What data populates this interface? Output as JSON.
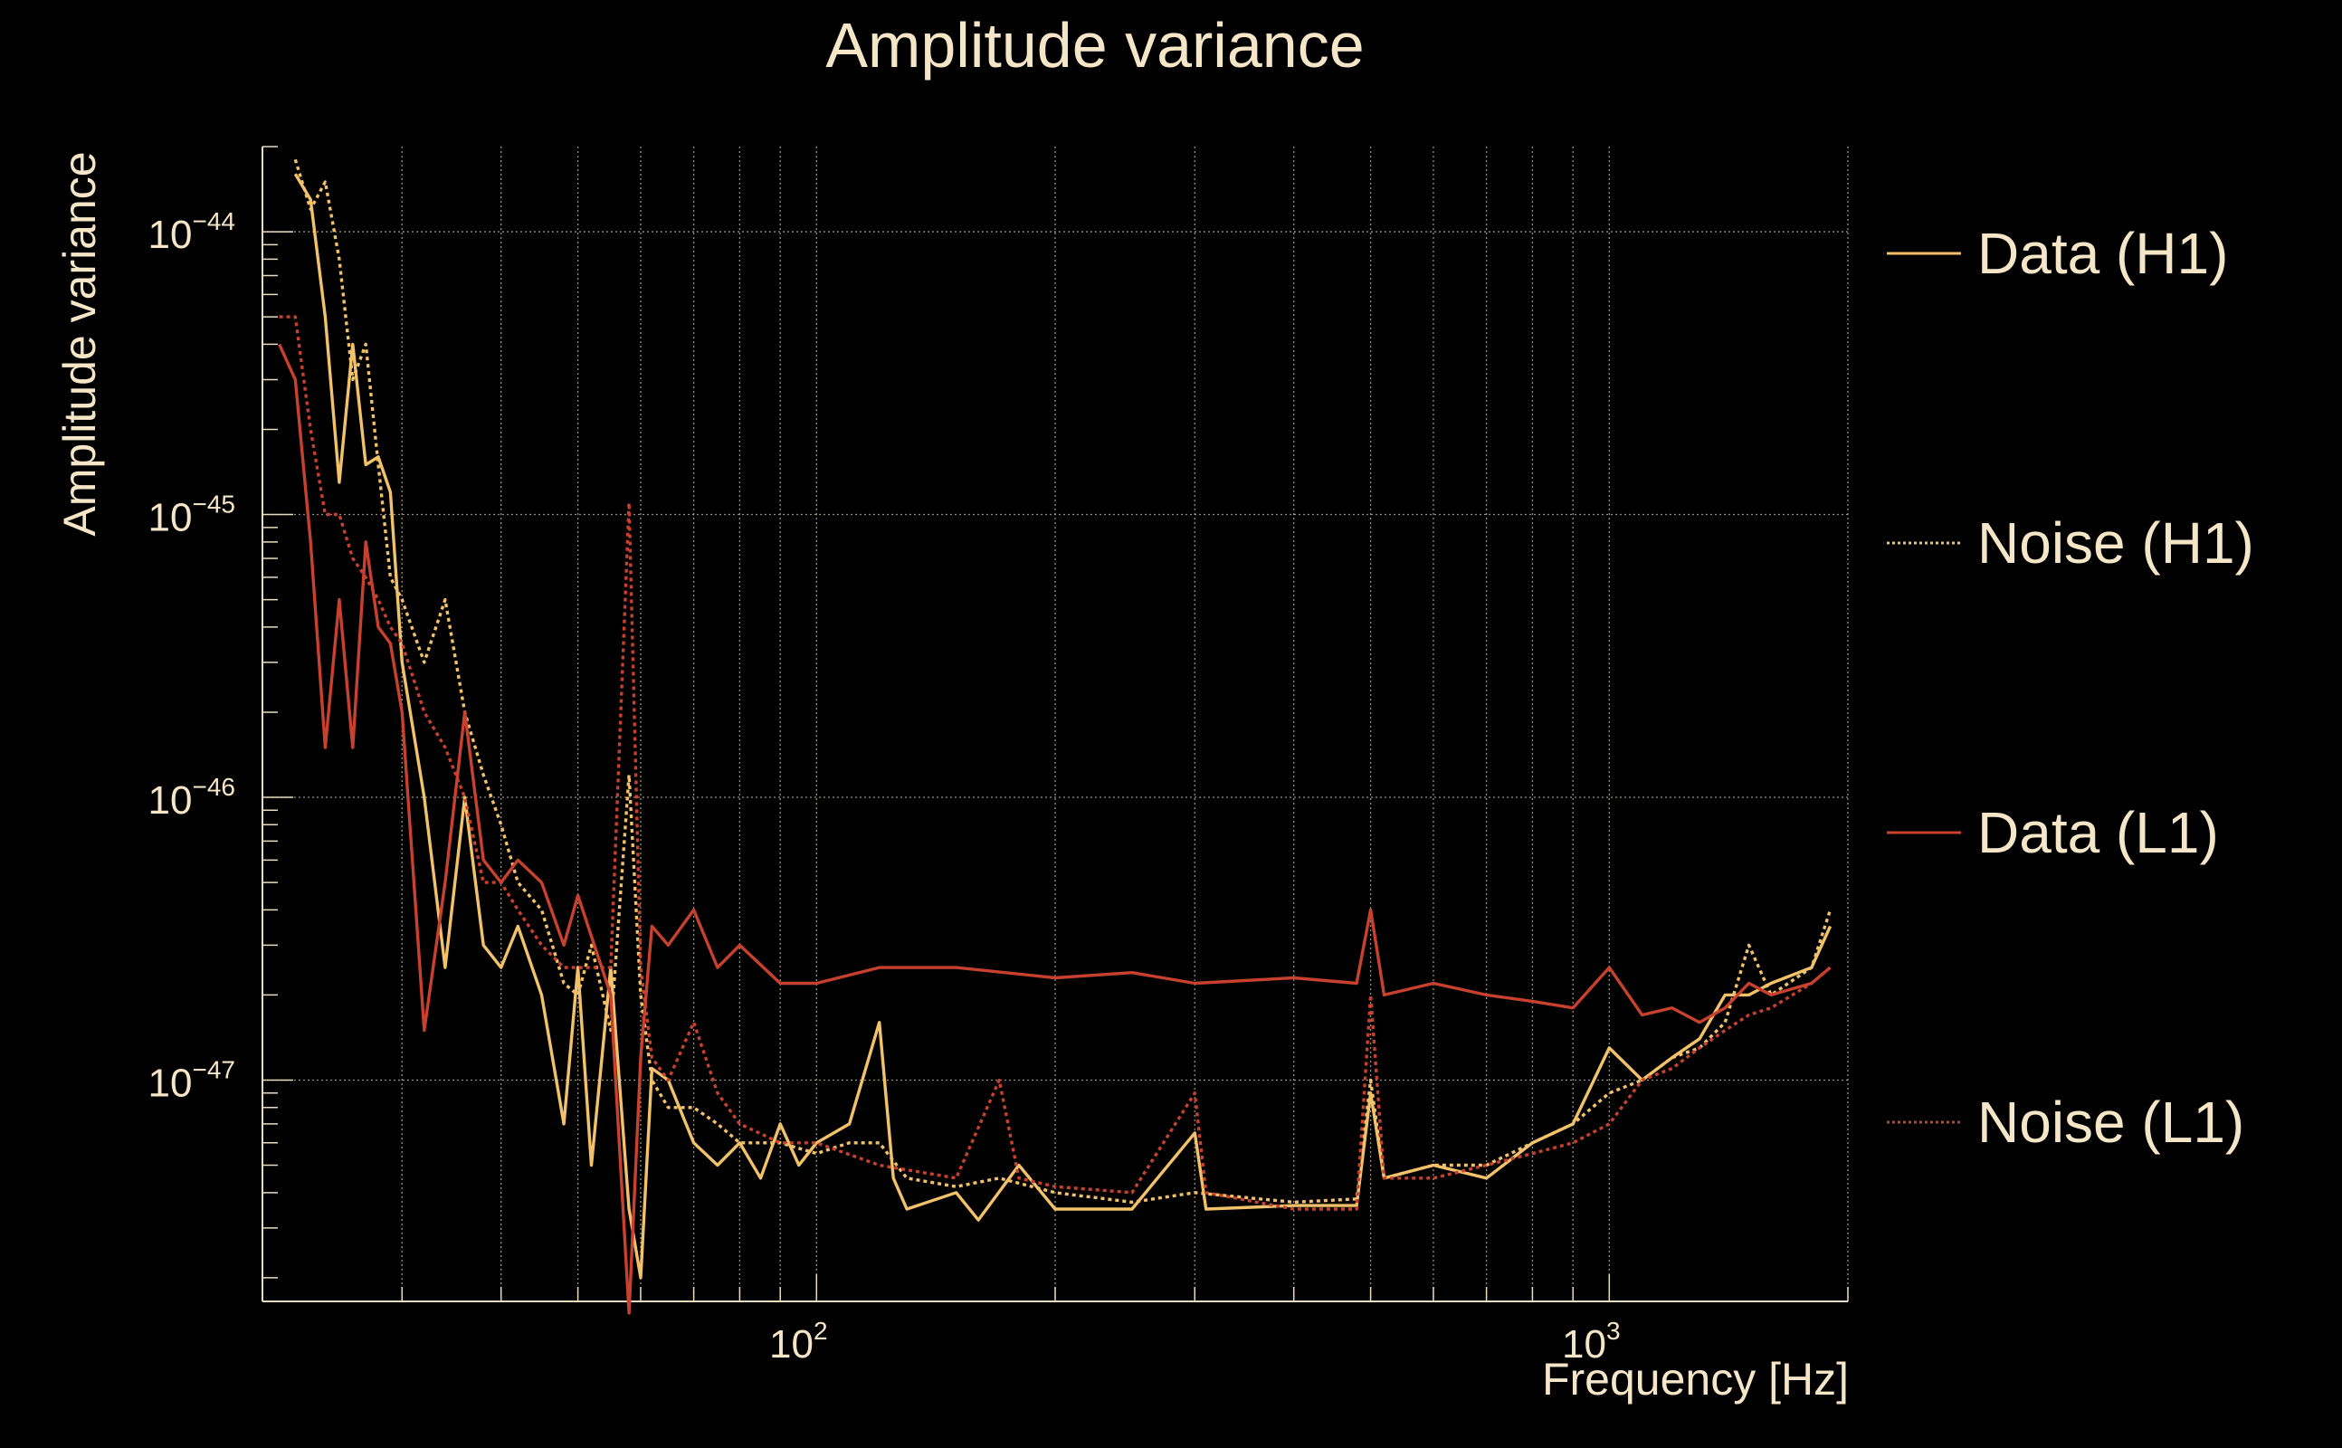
{
  "chart_data": {
    "type": "line",
    "title": "Amplitude variance",
    "xlabel": "Frequency [Hz]",
    "ylabel": "Amplitude variance",
    "xscale": "log",
    "yscale": "log",
    "xlim": [
      20,
      2000
    ],
    "ylim": [
      1.65e-48,
      2e-44
    ],
    "grid": true,
    "legend_position": "right",
    "x_tick_labels": [
      {
        "base": "10",
        "exp": "2",
        "value": 100
      },
      {
        "base": "10",
        "exp": "3",
        "value": 1000
      }
    ],
    "y_tick_labels": [
      {
        "base": "10",
        "exp": "−44",
        "value": 1e-44
      },
      {
        "base": "10",
        "exp": "−45",
        "value": 1e-45
      },
      {
        "base": "10",
        "exp": "−46",
        "value": 1e-46
      },
      {
        "base": "10",
        "exp": "−47",
        "value": 1e-47
      }
    ],
    "series": [
      {
        "name": "Data (H1)",
        "color": "#f2c26b",
        "style": "solid",
        "points": [
          [
            22,
            1.6e-44
          ],
          [
            23,
            1.3e-44
          ],
          [
            24,
            5e-45
          ],
          [
            25,
            1.3e-45
          ],
          [
            26,
            4e-45
          ],
          [
            27,
            1.5e-45
          ],
          [
            28,
            1.6e-45
          ],
          [
            29,
            1.2e-45
          ],
          [
            30,
            3e-46
          ],
          [
            32,
            1e-46
          ],
          [
            34,
            2.5e-47
          ],
          [
            36,
            1e-46
          ],
          [
            38,
            3e-47
          ],
          [
            40,
            2.5e-47
          ],
          [
            42,
            3.5e-47
          ],
          [
            45,
            2e-47
          ],
          [
            48,
            7e-48
          ],
          [
            50,
            2.5e-47
          ],
          [
            52,
            5e-48
          ],
          [
            55,
            2.5e-47
          ],
          [
            58,
            3.5e-48
          ],
          [
            60,
            2e-48
          ],
          [
            62,
            1.1e-47
          ],
          [
            65,
            1e-47
          ],
          [
            70,
            6e-48
          ],
          [
            75,
            5e-48
          ],
          [
            80,
            6e-48
          ],
          [
            85,
            4.5e-48
          ],
          [
            90,
            7e-48
          ],
          [
            95,
            5e-48
          ],
          [
            100,
            6e-48
          ],
          [
            110,
            7e-48
          ],
          [
            120,
            1.6e-47
          ],
          [
            125,
            4.5e-48
          ],
          [
            130,
            3.5e-48
          ],
          [
            150,
            4e-48
          ],
          [
            160,
            3.2e-48
          ],
          [
            180,
            5e-48
          ],
          [
            200,
            3.5e-48
          ],
          [
            250,
            3.5e-48
          ],
          [
            300,
            6.5e-48
          ],
          [
            310,
            3.5e-48
          ],
          [
            400,
            3.6e-48
          ],
          [
            480,
            3.6e-48
          ],
          [
            500,
            9e-48
          ],
          [
            520,
            4.5e-48
          ],
          [
            600,
            5e-48
          ],
          [
            700,
            4.5e-48
          ],
          [
            800,
            6e-48
          ],
          [
            900,
            7e-48
          ],
          [
            1000,
            1.3e-47
          ],
          [
            1100,
            1e-47
          ],
          [
            1200,
            1.2e-47
          ],
          [
            1300,
            1.4e-47
          ],
          [
            1400,
            2e-47
          ],
          [
            1500,
            2e-47
          ],
          [
            1600,
            2.2e-47
          ],
          [
            1800,
            2.5e-47
          ],
          [
            1900,
            3.5e-47
          ]
        ]
      },
      {
        "name": "Noise (H1)",
        "color": "#f2c26b",
        "style": "dotted",
        "points": [
          [
            22,
            1.8e-44
          ],
          [
            23,
            1.2e-44
          ],
          [
            24,
            1.5e-44
          ],
          [
            25,
            8e-45
          ],
          [
            26,
            3e-45
          ],
          [
            27,
            4e-45
          ],
          [
            28,
            1.5e-45
          ],
          [
            29,
            6e-46
          ],
          [
            30,
            5e-46
          ],
          [
            32,
            3e-46
          ],
          [
            34,
            5e-46
          ],
          [
            36,
            2e-46
          ],
          [
            38,
            1.2e-46
          ],
          [
            40,
            8e-47
          ],
          [
            42,
            5e-47
          ],
          [
            45,
            4e-47
          ],
          [
            48,
            2.2e-47
          ],
          [
            50,
            2e-47
          ],
          [
            52,
            3e-47
          ],
          [
            55,
            1.5e-47
          ],
          [
            58,
            1.2e-46
          ],
          [
            60,
            2e-47
          ],
          [
            62,
            1e-47
          ],
          [
            65,
            8e-48
          ],
          [
            70,
            8e-48
          ],
          [
            75,
            7e-48
          ],
          [
            80,
            6e-48
          ],
          [
            90,
            6e-48
          ],
          [
            100,
            5.5e-48
          ],
          [
            110,
            6e-48
          ],
          [
            120,
            6e-48
          ],
          [
            130,
            4.5e-48
          ],
          [
            150,
            4.2e-48
          ],
          [
            170,
            4.5e-48
          ],
          [
            200,
            4e-48
          ],
          [
            250,
            3.7e-48
          ],
          [
            300,
            4e-48
          ],
          [
            400,
            3.7e-48
          ],
          [
            480,
            3.8e-48
          ],
          [
            500,
            1e-47
          ],
          [
            520,
            4.5e-48
          ],
          [
            600,
            5e-48
          ],
          [
            700,
            5e-48
          ],
          [
            800,
            6e-48
          ],
          [
            900,
            7e-48
          ],
          [
            1000,
            9e-48
          ],
          [
            1100,
            1e-47
          ],
          [
            1200,
            1.2e-47
          ],
          [
            1300,
            1.3e-47
          ],
          [
            1400,
            1.6e-47
          ],
          [
            1500,
            3e-47
          ],
          [
            1600,
            2e-47
          ],
          [
            1800,
            2.5e-47
          ],
          [
            1900,
            4e-47
          ]
        ]
      },
      {
        "name": "Data (L1)",
        "color": "#c8402e",
        "style": "solid",
        "points": [
          [
            21,
            4e-45
          ],
          [
            22,
            3e-45
          ],
          [
            23,
            8e-46
          ],
          [
            24,
            1.5e-46
          ],
          [
            25,
            5e-46
          ],
          [
            26,
            1.5e-46
          ],
          [
            27,
            8e-46
          ],
          [
            28,
            4e-46
          ],
          [
            29,
            3.5e-46
          ],
          [
            30,
            2e-46
          ],
          [
            32,
            1.5e-47
          ],
          [
            34,
            5e-47
          ],
          [
            36,
            2e-46
          ],
          [
            38,
            6e-47
          ],
          [
            40,
            5e-47
          ],
          [
            42,
            6e-47
          ],
          [
            45,
            5e-47
          ],
          [
            48,
            3e-47
          ],
          [
            50,
            4.5e-47
          ],
          [
            55,
            2e-47
          ],
          [
            58,
            1.5e-48
          ],
          [
            60,
            1.2e-47
          ],
          [
            62,
            3.5e-47
          ],
          [
            65,
            3e-47
          ],
          [
            70,
            4e-47
          ],
          [
            75,
            2.5e-47
          ],
          [
            80,
            3e-47
          ],
          [
            90,
            2.2e-47
          ],
          [
            100,
            2.2e-47
          ],
          [
            120,
            2.5e-47
          ],
          [
            150,
            2.5e-47
          ],
          [
            200,
            2.3e-47
          ],
          [
            250,
            2.4e-47
          ],
          [
            300,
            2.2e-47
          ],
          [
            400,
            2.3e-47
          ],
          [
            480,
            2.2e-47
          ],
          [
            500,
            4e-47
          ],
          [
            520,
            2e-47
          ],
          [
            600,
            2.2e-47
          ],
          [
            700,
            2e-47
          ],
          [
            800,
            1.9e-47
          ],
          [
            900,
            1.8e-47
          ],
          [
            1000,
            2.5e-47
          ],
          [
            1100,
            1.7e-47
          ],
          [
            1200,
            1.8e-47
          ],
          [
            1300,
            1.6e-47
          ],
          [
            1400,
            1.8e-47
          ],
          [
            1500,
            2.2e-47
          ],
          [
            1600,
            2e-47
          ],
          [
            1800,
            2.2e-47
          ],
          [
            1900,
            2.5e-47
          ]
        ]
      },
      {
        "name": "Noise (L1)",
        "color": "#c8402e",
        "style": "dotted",
        "points": [
          [
            21,
            5e-45
          ],
          [
            22,
            5e-45
          ],
          [
            23,
            2e-45
          ],
          [
            24,
            1e-45
          ],
          [
            25,
            1e-45
          ],
          [
            26,
            7e-46
          ],
          [
            27,
            6e-46
          ],
          [
            28,
            5e-46
          ],
          [
            29,
            4e-46
          ],
          [
            30,
            3.5e-46
          ],
          [
            32,
            2e-46
          ],
          [
            34,
            1.5e-46
          ],
          [
            36,
            1e-46
          ],
          [
            38,
            5e-47
          ],
          [
            40,
            5e-47
          ],
          [
            42,
            4e-47
          ],
          [
            45,
            3e-47
          ],
          [
            48,
            2.5e-47
          ],
          [
            50,
            2.5e-47
          ],
          [
            55,
            2.5e-47
          ],
          [
            58,
            1.1e-45
          ],
          [
            60,
            2.5e-47
          ],
          [
            62,
            1.2e-47
          ],
          [
            65,
            1e-47
          ],
          [
            70,
            1.6e-47
          ],
          [
            75,
            9e-48
          ],
          [
            80,
            7e-48
          ],
          [
            90,
            6e-48
          ],
          [
            100,
            6e-48
          ],
          [
            120,
            5e-48
          ],
          [
            150,
            4.5e-48
          ],
          [
            170,
            1e-47
          ],
          [
            180,
            4.5e-48
          ],
          [
            200,
            4.2e-48
          ],
          [
            250,
            4e-48
          ],
          [
            300,
            9e-48
          ],
          [
            310,
            4e-48
          ],
          [
            400,
            3.5e-48
          ],
          [
            480,
            3.5e-48
          ],
          [
            500,
            2e-47
          ],
          [
            520,
            4.5e-48
          ],
          [
            600,
            4.5e-48
          ],
          [
            700,
            5e-48
          ],
          [
            800,
            5.5e-48
          ],
          [
            900,
            6e-48
          ],
          [
            1000,
            7e-48
          ],
          [
            1100,
            1e-47
          ],
          [
            1200,
            1.1e-47
          ],
          [
            1300,
            1.3e-47
          ],
          [
            1400,
            1.5e-47
          ],
          [
            1500,
            1.7e-47
          ],
          [
            1600,
            1.8e-47
          ],
          [
            1800,
            2.2e-47
          ],
          [
            1900,
            2.5e-47
          ]
        ]
      }
    ]
  }
}
